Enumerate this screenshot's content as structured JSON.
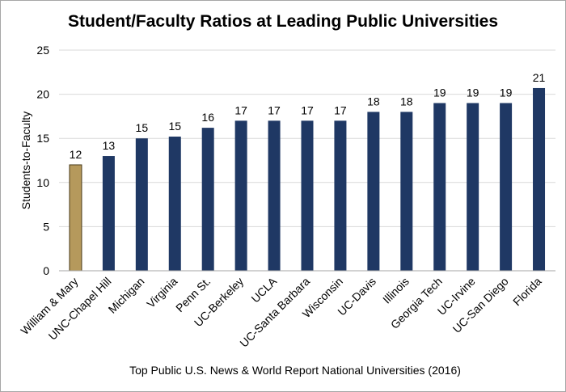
{
  "chart_data": {
    "type": "bar",
    "title": "Student/Faculty Ratios at Leading Public Universities",
    "xlabel": "Top Public U.S. News & World Report National Universities (2016)",
    "ylabel": "Students-to-Faculty",
    "ylim": [
      0,
      25
    ],
    "yticks": [
      0,
      5,
      10,
      15,
      20,
      25
    ],
    "grid": true,
    "categories": [
      "William & Mary",
      "UNC-Chapel Hill",
      "Michigan",
      "Virginia",
      "Penn St.",
      "UC-Berkeley",
      "UCLA",
      "UC-Santa Barbara",
      "Wisconsin",
      "UC-Davis",
      "Illinois",
      "Georgia Tech",
      "UC-Irvine",
      "UC-San Diego",
      "Florida"
    ],
    "values": [
      12,
      13,
      15,
      15.2,
      16.2,
      17,
      17,
      17,
      17,
      18,
      18,
      19,
      19,
      19,
      20.7
    ],
    "data_labels": [
      "12",
      "13",
      "15",
      "15",
      "16",
      "17",
      "17",
      "17",
      "17",
      "18",
      "18",
      "19",
      "19",
      "19",
      "21"
    ],
    "colors": {
      "highlight": "#b5995c",
      "default": "#1f3864",
      "highlight_edge": "#4a3c1c",
      "grid": "#d9d9d9",
      "axis": "#a6a6a6"
    },
    "highlight_index": 0
  }
}
